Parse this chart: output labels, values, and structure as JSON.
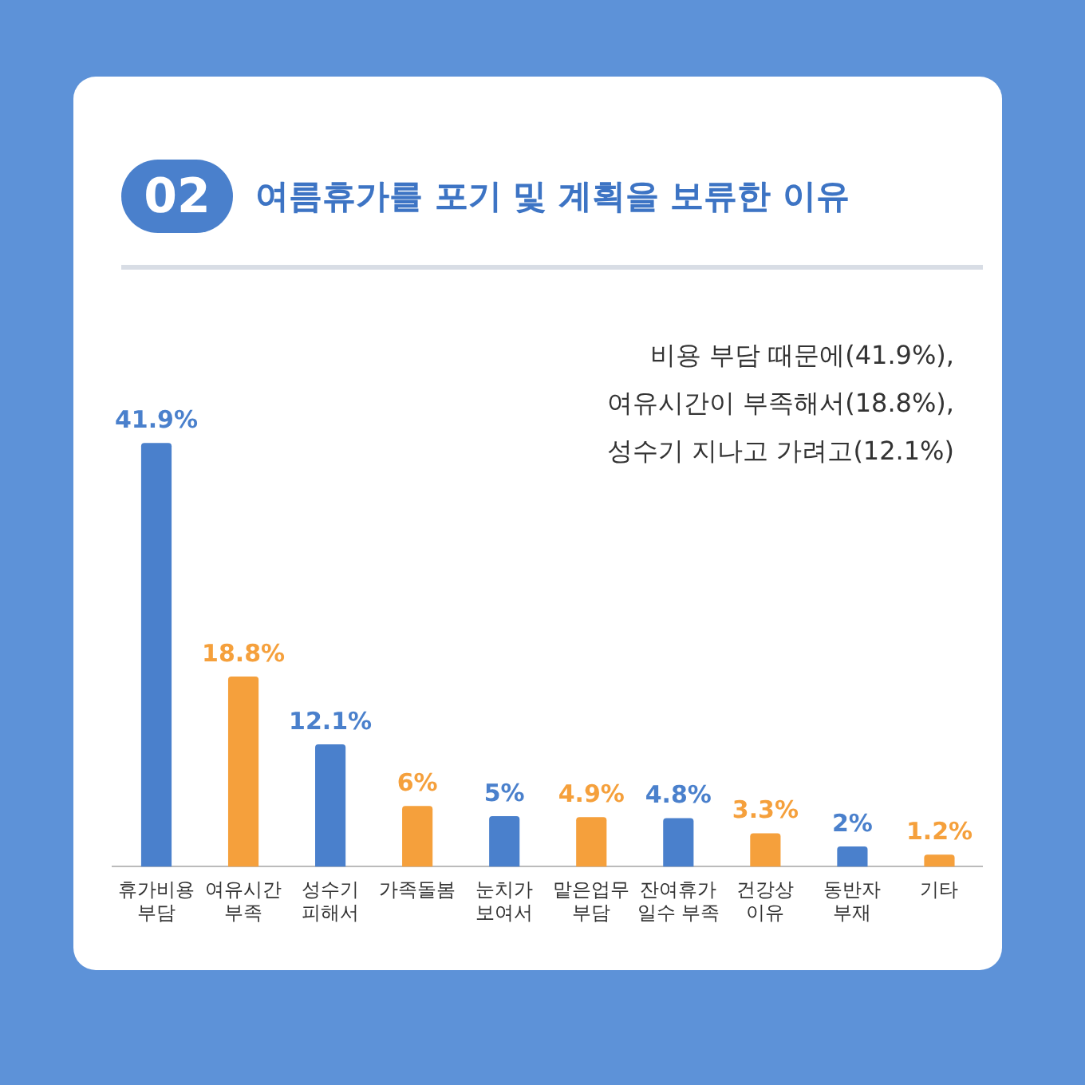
{
  "chart_data": {
    "type": "bar",
    "title": "여름휴가를 포기 및 계획을 보류한 이유",
    "categories": [
      "휴가비용\n부담",
      "여유시간\n부족",
      "성수기\n피해서",
      "가족돌봄",
      "눈치가\n보여서",
      "맡은업무\n부담",
      "잔여휴가\n일수 부족",
      "건강상\n이유",
      "동반자\n부재",
      "기타"
    ],
    "values": [
      41.9,
      18.8,
      12.1,
      6,
      5,
      4.9,
      4.8,
      3.3,
      2,
      1.2
    ],
    "colors": [
      "#4a80cc",
      "#f5a03c",
      "#4a80cc",
      "#f5a03c",
      "#4a80cc",
      "#f5a03c",
      "#4a80cc",
      "#f5a03c",
      "#4a80cc",
      "#f5a03c"
    ],
    "value_labels": [
      "41.9%",
      "18.8%",
      "12.1%",
      "6%",
      "5%",
      "4.9%",
      "4.8%",
      "3.3%",
      "2%",
      "1.2%"
    ],
    "annotations": [
      "02",
      "비용 부담 때문에(41.9%),\n여유시간이 부족해서(18.8%),\n성수기 지나고 가려고(12.1%)"
    ],
    "grid": false,
    "legend": false
  }
}
